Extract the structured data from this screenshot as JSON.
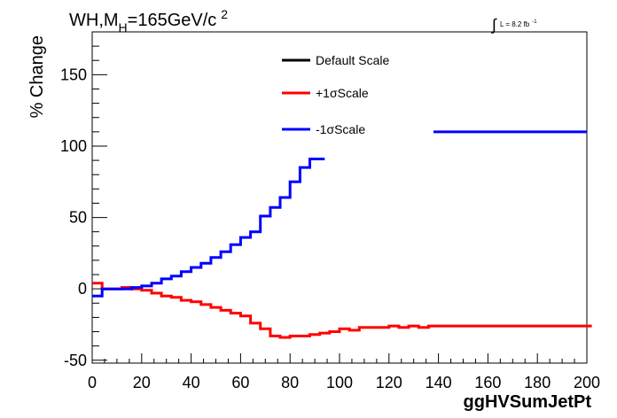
{
  "chart_data": {
    "type": "line",
    "title_main": "WH,M",
    "title_sub": "H",
    "title_rest": "=165GeV/c",
    "title_sup": "2",
    "lumi_symbol": "∫",
    "lumi_text": "L = 8.2 fb",
    "lumi_sup": "-1",
    "xlabel": "ggHVSumJetPt",
    "ylabel": "% Change",
    "xlim": [
      0,
      200
    ],
    "ylim": [
      -52,
      180
    ],
    "x_ticks": [
      {
        "value": 0,
        "label": "0"
      },
      {
        "value": 20,
        "label": "20"
      },
      {
        "value": 40,
        "label": "40"
      },
      {
        "value": 60,
        "label": "60"
      },
      {
        "value": 80,
        "label": "80"
      },
      {
        "value": 100,
        "label": "100"
      },
      {
        "value": 120,
        "label": "120"
      },
      {
        "value": 140,
        "label": "140"
      },
      {
        "value": 160,
        "label": "160"
      },
      {
        "value": 180,
        "label": "180"
      },
      {
        "value": 200,
        "label": "200"
      }
    ],
    "y_ticks": [
      {
        "value": -50,
        "label": "-50"
      },
      {
        "value": 0,
        "label": "0"
      },
      {
        "value": 50,
        "label": "50"
      },
      {
        "value": 100,
        "label": "100"
      },
      {
        "value": 150,
        "label": "150"
      }
    ],
    "legend_position": "top-center",
    "series": [
      {
        "name": "Default Scale",
        "color": "#000000",
        "edges": [],
        "values": []
      },
      {
        "name": "+1σScale",
        "color": "#ff0000",
        "edges": [
          0,
          4,
          8,
          12,
          16,
          20,
          24,
          28,
          32,
          36,
          40,
          44,
          48,
          52,
          56,
          60,
          64,
          68,
          72,
          76,
          80,
          84,
          88,
          92,
          96,
          100,
          104,
          108,
          112,
          116,
          120,
          124,
          128,
          132,
          136,
          200
        ],
        "values": [
          4,
          0,
          0,
          1,
          0,
          -1,
          -3,
          -5,
          -6,
          -8,
          -9,
          -11,
          -13,
          -15,
          -17,
          -19,
          -24,
          -28,
          -33,
          -34,
          -33,
          -33,
          -32,
          -31,
          -30,
          -28,
          -29,
          -27,
          -27,
          -27,
          -26,
          -27,
          -26,
          -27,
          -26,
          -26
        ]
      },
      {
        "name": "-1σScale",
        "color": "#0000ff",
        "edges": [
          0,
          4,
          8,
          12,
          16,
          20,
          24,
          28,
          32,
          36,
          40,
          44,
          48,
          52,
          56,
          60,
          64,
          68,
          72,
          76,
          80,
          84,
          88,
          92
        ],
        "values": [
          -5,
          0,
          0,
          0,
          1,
          2,
          4,
          7,
          9,
          12,
          15,
          18,
          22,
          26,
          31,
          36,
          40,
          51,
          57,
          64,
          75,
          85,
          91,
          91
        ],
        "extra_segment": {
          "x_start": 138,
          "x_end": 200,
          "value": 110
        }
      }
    ]
  }
}
